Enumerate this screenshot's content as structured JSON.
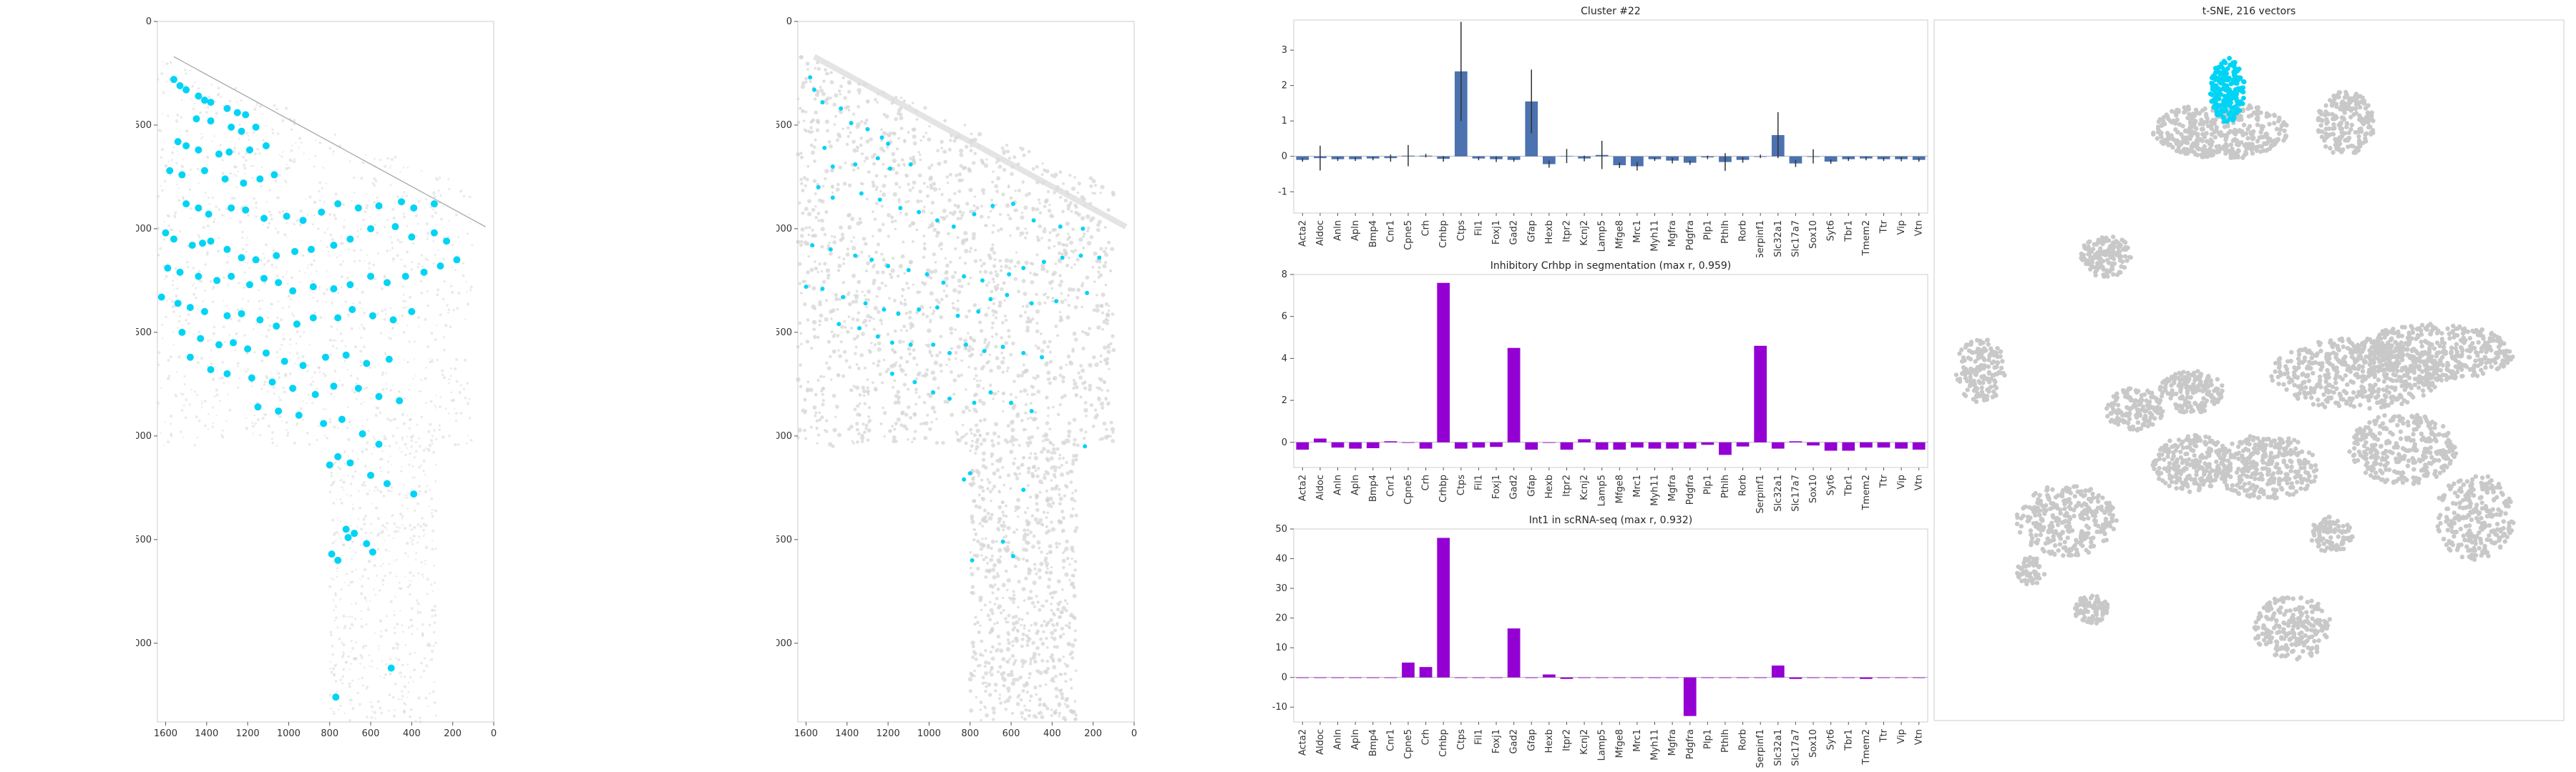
{
  "colors": {
    "spot": "#00d4f5",
    "cluster_bar": "#4c72b0",
    "error_bar": "#333333",
    "purple_bar": "#9400d3",
    "tissue": "#d9d9d9",
    "tsne_gray": "#c8c8c8",
    "tsne_highlight": "#00d4f5"
  },
  "genes": [
    "Acta2",
    "Aldoc",
    "Anln",
    "Apln",
    "Bmp4",
    "Cnr1",
    "Cpne5",
    "Crh",
    "Crhbp",
    "Ctps",
    "Fil1",
    "Foxj1",
    "Gad2",
    "Gfap",
    "Hexb",
    "Itpr2",
    "Kcnj2",
    "Lamp5",
    "Mfge8",
    "Mrc1",
    "Myh11",
    "Mgfra",
    "Pdgfra",
    "Plp1",
    "Pthlh",
    "Rorb",
    "Serpinf1",
    "Slc32a1",
    "Slc17a7",
    "Sox10",
    "Syt6",
    "Tbr1",
    "Tmem2",
    "Ttr",
    "Vip",
    "Vtn"
  ],
  "chart_data": [
    {
      "type": "scatter",
      "name": "spatial-map-cluster-spots",
      "title": "",
      "xlim": [
        1640,
        0
      ],
      "ylim": [
        3380,
        0
      ],
      "xticks": [
        1600,
        1400,
        1200,
        1000,
        800,
        600,
        400,
        200,
        0
      ],
      "yticks": [
        0,
        500,
        1000,
        1500,
        2000,
        2500,
        3000
      ],
      "points": [
        [
          1560,
          280
        ],
        [
          1530,
          310
        ],
        [
          1500,
          330
        ],
        [
          1440,
          360
        ],
        [
          1410,
          380
        ],
        [
          1380,
          390
        ],
        [
          1300,
          420
        ],
        [
          1250,
          440
        ],
        [
          1210,
          450
        ],
        [
          1450,
          470
        ],
        [
          1380,
          480
        ],
        [
          1280,
          510
        ],
        [
          1230,
          530
        ],
        [
          1160,
          510
        ],
        [
          1540,
          580
        ],
        [
          1500,
          600
        ],
        [
          1440,
          620
        ],
        [
          1340,
          640
        ],
        [
          1290,
          630
        ],
        [
          1190,
          620
        ],
        [
          1110,
          600
        ],
        [
          1580,
          720
        ],
        [
          1520,
          740
        ],
        [
          1410,
          720
        ],
        [
          1310,
          760
        ],
        [
          1220,
          780
        ],
        [
          1140,
          760
        ],
        [
          1070,
          740
        ],
        [
          1500,
          880
        ],
        [
          1440,
          900
        ],
        [
          1390,
          930
        ],
        [
          1280,
          900
        ],
        [
          1210,
          910
        ],
        [
          1120,
          950
        ],
        [
          1010,
          940
        ],
        [
          930,
          960
        ],
        [
          840,
          920
        ],
        [
          760,
          880
        ],
        [
          660,
          900
        ],
        [
          560,
          890
        ],
        [
          450,
          870
        ],
        [
          390,
          900
        ],
        [
          290,
          880
        ],
        [
          1600,
          1020
        ],
        [
          1560,
          1050
        ],
        [
          1470,
          1080
        ],
        [
          1420,
          1070
        ],
        [
          1380,
          1060
        ],
        [
          1300,
          1100
        ],
        [
          1230,
          1140
        ],
        [
          1160,
          1150
        ],
        [
          1060,
          1130
        ],
        [
          970,
          1110
        ],
        [
          890,
          1100
        ],
        [
          780,
          1080
        ],
        [
          700,
          1050
        ],
        [
          600,
          1000
        ],
        [
          480,
          990
        ],
        [
          400,
          1040
        ],
        [
          290,
          1020
        ],
        [
          230,
          1060
        ],
        [
          180,
          1150
        ],
        [
          1590,
          1190
        ],
        [
          1530,
          1210
        ],
        [
          1440,
          1230
        ],
        [
          1350,
          1250
        ],
        [
          1280,
          1230
        ],
        [
          1190,
          1270
        ],
        [
          1120,
          1240
        ],
        [
          1050,
          1260
        ],
        [
          980,
          1300
        ],
        [
          880,
          1280
        ],
        [
          780,
          1290
        ],
        [
          700,
          1270
        ],
        [
          600,
          1230
        ],
        [
          520,
          1260
        ],
        [
          430,
          1230
        ],
        [
          340,
          1210
        ],
        [
          260,
          1180
        ],
        [
          1620,
          1330
        ],
        [
          1540,
          1360
        ],
        [
          1480,
          1380
        ],
        [
          1410,
          1400
        ],
        [
          1300,
          1420
        ],
        [
          1230,
          1410
        ],
        [
          1140,
          1440
        ],
        [
          1060,
          1470
        ],
        [
          960,
          1460
        ],
        [
          880,
          1430
        ],
        [
          760,
          1430
        ],
        [
          690,
          1390
        ],
        [
          590,
          1420
        ],
        [
          490,
          1440
        ],
        [
          400,
          1400
        ],
        [
          1520,
          1500
        ],
        [
          1430,
          1530
        ],
        [
          1340,
          1560
        ],
        [
          1270,
          1550
        ],
        [
          1200,
          1580
        ],
        [
          1110,
          1600
        ],
        [
          1020,
          1640
        ],
        [
          930,
          1660
        ],
        [
          820,
          1620
        ],
        [
          720,
          1610
        ],
        [
          620,
          1650
        ],
        [
          510,
          1630
        ],
        [
          1480,
          1620
        ],
        [
          1380,
          1680
        ],
        [
          1300,
          1700
        ],
        [
          1180,
          1720
        ],
        [
          1080,
          1740
        ],
        [
          980,
          1770
        ],
        [
          870,
          1800
        ],
        [
          780,
          1760
        ],
        [
          660,
          1770
        ],
        [
          560,
          1810
        ],
        [
          460,
          1830
        ],
        [
          1150,
          1860
        ],
        [
          1050,
          1880
        ],
        [
          950,
          1900
        ],
        [
          830,
          1940
        ],
        [
          740,
          1920
        ],
        [
          640,
          1990
        ],
        [
          560,
          2040
        ],
        [
          760,
          2100
        ],
        [
          700,
          2130
        ],
        [
          800,
          2140
        ],
        [
          600,
          2190
        ],
        [
          520,
          2230
        ],
        [
          390,
          2280
        ],
        [
          720,
          2450
        ],
        [
          680,
          2470
        ],
        [
          710,
          2490
        ],
        [
          620,
          2520
        ],
        [
          590,
          2560
        ],
        [
          790,
          2570
        ],
        [
          760,
          2600
        ],
        [
          500,
          3120
        ],
        [
          770,
          3260
        ]
      ]
    },
    {
      "type": "scatter",
      "name": "spatial-map-segmentation-spots",
      "title": "",
      "xlim": [
        1640,
        0
      ],
      "ylim": [
        3380,
        0
      ],
      "xticks": [
        1600,
        1400,
        1200,
        1000,
        800,
        600,
        400,
        200,
        0
      ],
      "yticks": [
        0,
        500,
        1000,
        1500,
        2000,
        2500,
        3000
      ],
      "points": [
        [
          1580,
          270
        ],
        [
          1560,
          330
        ],
        [
          1520,
          390
        ],
        [
          1430,
          420
        ],
        [
          1380,
          490
        ],
        [
          1300,
          520
        ],
        [
          1230,
          560
        ],
        [
          1200,
          590
        ],
        [
          1510,
          610
        ],
        [
          1470,
          700
        ],
        [
          1360,
          690
        ],
        [
          1250,
          660
        ],
        [
          1190,
          710
        ],
        [
          1090,
          690
        ],
        [
          1540,
          800
        ],
        [
          1470,
          850
        ],
        [
          1330,
          830
        ],
        [
          1240,
          860
        ],
        [
          1140,
          900
        ],
        [
          1050,
          920
        ],
        [
          960,
          960
        ],
        [
          880,
          990
        ],
        [
          780,
          930
        ],
        [
          690,
          890
        ],
        [
          590,
          880
        ],
        [
          490,
          960
        ],
        [
          360,
          990
        ],
        [
          250,
          1000
        ],
        [
          1570,
          1080
        ],
        [
          1480,
          1100
        ],
        [
          1360,
          1130
        ],
        [
          1280,
          1150
        ],
        [
          1200,
          1180
        ],
        [
          1100,
          1200
        ],
        [
          1010,
          1220
        ],
        [
          930,
          1260
        ],
        [
          830,
          1230
        ],
        [
          740,
          1250
        ],
        [
          610,
          1220
        ],
        [
          540,
          1190
        ],
        [
          440,
          1160
        ],
        [
          350,
          1140
        ],
        [
          260,
          1130
        ],
        [
          170,
          1140
        ],
        [
          1600,
          1280
        ],
        [
          1520,
          1290
        ],
        [
          1420,
          1330
        ],
        [
          1310,
          1360
        ],
        [
          1220,
          1390
        ],
        [
          1150,
          1410
        ],
        [
          1050,
          1390
        ],
        [
          960,
          1380
        ],
        [
          860,
          1420
        ],
        [
          760,
          1400
        ],
        [
          700,
          1340
        ],
        [
          620,
          1320
        ],
        [
          500,
          1360
        ],
        [
          380,
          1350
        ],
        [
          230,
          1310
        ],
        [
          1440,
          1460
        ],
        [
          1340,
          1480
        ],
        [
          1250,
          1520
        ],
        [
          1180,
          1550
        ],
        [
          1090,
          1560
        ],
        [
          980,
          1560
        ],
        [
          900,
          1600
        ],
        [
          820,
          1560
        ],
        [
          730,
          1590
        ],
        [
          640,
          1570
        ],
        [
          540,
          1600
        ],
        [
          450,
          1620
        ],
        [
          1180,
          1700
        ],
        [
          1070,
          1740
        ],
        [
          980,
          1790
        ],
        [
          900,
          1820
        ],
        [
          780,
          1840
        ],
        [
          700,
          1790
        ],
        [
          600,
          1840
        ],
        [
          500,
          1880
        ],
        [
          830,
          2210
        ],
        [
          800,
          2180
        ],
        [
          540,
          2260
        ],
        [
          240,
          2050
        ],
        [
          640,
          2510
        ],
        [
          590,
          2580
        ],
        [
          790,
          2600
        ]
      ]
    },
    {
      "type": "bar",
      "name": "cluster-22-profile",
      "title": "Cluster #22",
      "ylim": [
        -1.6,
        3.85
      ],
      "yticks": [
        -1,
        0,
        1,
        2,
        3
      ],
      "categories": [
        "Acta2",
        "Aldoc",
        "Anln",
        "Apln",
        "Bmp4",
        "Cnr1",
        "Cpne5",
        "Crh",
        "Crhbp",
        "Ctps",
        "Fil1",
        "Foxj1",
        "Gad2",
        "Gfap",
        "Hexb",
        "Itpr2",
        "Kcnj2",
        "Lamp5",
        "Mfge8",
        "Mrc1",
        "Myh11",
        "Mgfra",
        "Pdgfra",
        "Plp1",
        "Pthlh",
        "Rorb",
        "Serpinf1",
        "Slc32a1",
        "Slc17a7",
        "Sox10",
        "Syt6",
        "Tbr1",
        "Tmem2",
        "Ttr",
        "Vip",
        "Vtn"
      ],
      "values": [
        -0.1,
        -0.05,
        -0.08,
        -0.08,
        -0.06,
        -0.05,
        0.02,
        0.02,
        -0.07,
        2.4,
        -0.06,
        -0.08,
        -0.1,
        1.55,
        -0.22,
        0.01,
        -0.06,
        0.04,
        -0.25,
        -0.28,
        -0.08,
        -0.12,
        -0.18,
        -0.03,
        -0.16,
        -0.1,
        0.0,
        0.6,
        -0.2,
        0.0,
        -0.15,
        -0.08,
        -0.06,
        -0.08,
        -0.08,
        -0.1
      ],
      "errors": [
        0.05,
        0.35,
        0.05,
        0.05,
        0.05,
        0.1,
        0.3,
        0.05,
        0.08,
        1.4,
        0.05,
        0.08,
        0.05,
        0.9,
        0.1,
        0.2,
        0.08,
        0.4,
        0.08,
        0.12,
        0.05,
        0.08,
        0.06,
        0.05,
        0.25,
        0.08,
        0.05,
        0.65,
        0.1,
        0.2,
        0.06,
        0.05,
        0.05,
        0.05,
        0.06,
        0.05
      ],
      "grid": false
    },
    {
      "type": "bar",
      "name": "inhibitory-crhbp-segmentation",
      "title": "Inhibitory Crhbp in segmentation (max r, 0.959)",
      "ylim": [
        -1.2,
        8
      ],
      "yticks": [
        0,
        2,
        4,
        6,
        8
      ],
      "categories": [
        "Acta2",
        "Aldoc",
        "Anln",
        "Apln",
        "Bmp4",
        "Cnr1",
        "Cpne5",
        "Crh",
        "Crhbp",
        "Ctps",
        "Fil1",
        "Foxj1",
        "Gad2",
        "Gfap",
        "Hexb",
        "Itpr2",
        "Kcnj2",
        "Lamp5",
        "Mfge8",
        "Mrc1",
        "Myh11",
        "Mgfra",
        "Pdgfra",
        "Plp1",
        "Pthlh",
        "Rorb",
        "Serpinf1",
        "Slc32a1",
        "Slc17a7",
        "Sox10",
        "Syt6",
        "Tbr1",
        "Tmem2",
        "Ttr",
        "Vip",
        "Vtn"
      ],
      "values": [
        -0.35,
        0.18,
        -0.25,
        -0.3,
        -0.28,
        0.05,
        0.0,
        -0.3,
        7.6,
        -0.3,
        -0.25,
        -0.22,
        4.5,
        -0.35,
        0.0,
        -0.35,
        0.15,
        -0.35,
        -0.35,
        -0.25,
        -0.3,
        -0.3,
        -0.3,
        -0.12,
        -0.6,
        -0.2,
        4.6,
        -0.3,
        0.05,
        -0.15,
        -0.4,
        -0.4,
        -0.25,
        -0.25,
        -0.3,
        -0.35
      ],
      "grid": false
    },
    {
      "type": "bar",
      "name": "int1-scrnaseq",
      "title": "Int1 in scRNA-seq (max r, 0.932)",
      "ylim": [
        -15,
        50
      ],
      "yticks": [
        -10,
        0,
        10,
        20,
        30,
        40,
        50
      ],
      "categories": [
        "Acta2",
        "Aldoc",
        "Anln",
        "Apln",
        "Bmp4",
        "Cnr1",
        "Cpne5",
        "Crh",
        "Crhbp",
        "Ctps",
        "Fil1",
        "Foxj1",
        "Gad2",
        "Gfap",
        "Hexb",
        "Itpr2",
        "Kcnj2",
        "Lamp5",
        "Mfge8",
        "Mrc1",
        "Myh11",
        "Mgfra",
        "Pdgfra",
        "Plp1",
        "Pthlh",
        "Rorb",
        "Serpinf1",
        "Slc32a1",
        "Slc17a7",
        "Sox10",
        "Syt6",
        "Tbr1",
        "Tmem2",
        "Ttr",
        "Vip",
        "Vtn"
      ],
      "values": [
        0,
        0,
        0,
        0,
        0,
        0,
        5,
        3.5,
        47,
        0,
        0,
        0,
        16.5,
        0,
        1,
        -0.5,
        0,
        0,
        0,
        0,
        0,
        0,
        -13,
        0,
        0,
        0,
        0,
        4,
        -0.5,
        0,
        0,
        0,
        -0.5,
        0,
        0,
        0
      ],
      "grid": false
    },
    {
      "type": "scatter",
      "name": "tsne-embedding",
      "title": "t-SNE, 216 vectors",
      "highlighted_cluster": "Cluster #22",
      "grid": false
    }
  ]
}
